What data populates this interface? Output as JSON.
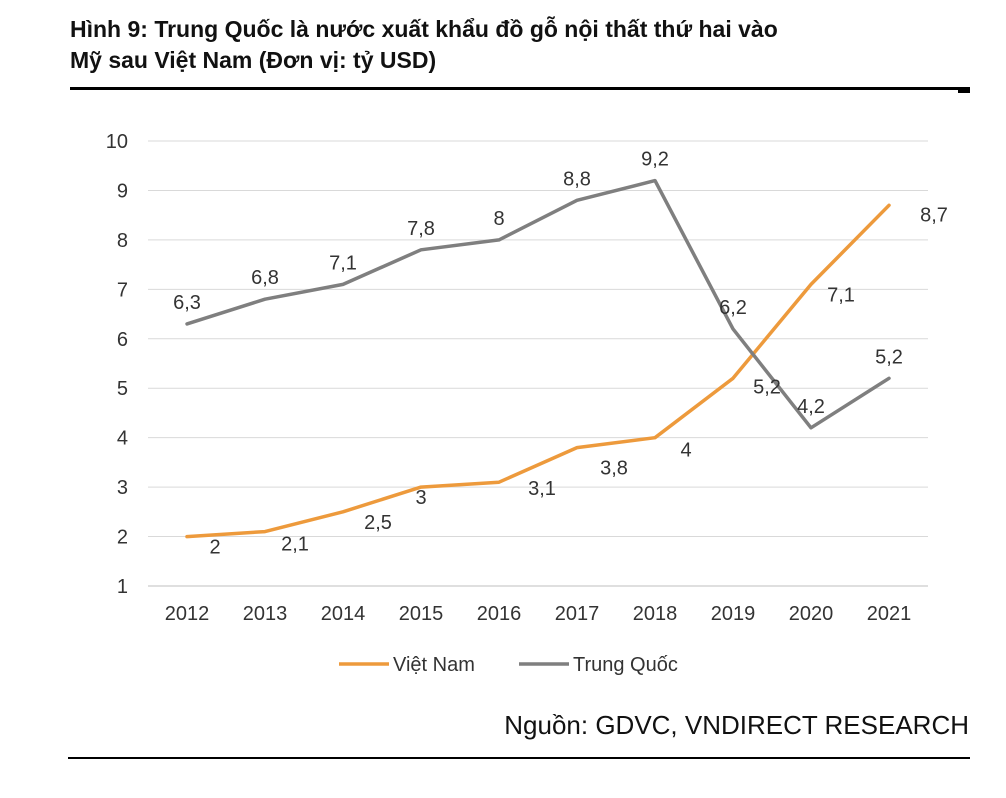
{
  "figure": {
    "title_line1": "Hình 9: Trung Quốc là nước xuất khẩu đồ gỗ nội thất thứ hai vào",
    "title_line2": "Mỹ sau Việt Nam (Đơn vị: tỷ USD)",
    "source": "Nguồn: GDVC, VNDIRECT RESEARCH"
  },
  "chart_data": {
    "type": "line",
    "title": "Hình 9: Trung Quốc là nước xuất khẩu đồ gỗ nội thất thứ hai vào Mỹ sau Việt Nam (Đơn vị: tỷ USD)",
    "xlabel": "",
    "ylabel": "",
    "ylim": [
      1,
      10
    ],
    "yticks": [
      "1",
      "2",
      "3",
      "4",
      "5",
      "6",
      "7",
      "8",
      "9",
      "10"
    ],
    "grid": true,
    "legend_position": "bottom",
    "x": [
      "2012",
      "2013",
      "2014",
      "2015",
      "2016",
      "2017",
      "2018",
      "2019",
      "2020",
      "2021"
    ],
    "series": [
      {
        "name": "Việt Nam",
        "color": "#ED9A3C",
        "values": [
          2,
          2.1,
          2.5,
          3,
          3.1,
          3.8,
          4,
          5.2,
          7.1,
          8.7
        ],
        "labels": [
          "2",
          "2,1",
          "2,5",
          "3",
          "3,1",
          "3,8",
          "4",
          "5,2",
          "7,1",
          "8,7"
        ]
      },
      {
        "name": "Trung Quốc",
        "color": "#7F7F7F",
        "values": [
          6.3,
          6.8,
          7.1,
          7.8,
          8,
          8.8,
          9.2,
          6.2,
          4.2,
          5.2
        ],
        "labels": [
          "6,3",
          "6,8",
          "7,1",
          "7,8",
          "8",
          "8,8",
          "9,2",
          "6,2",
          "4,2",
          "5,2"
        ]
      }
    ]
  }
}
